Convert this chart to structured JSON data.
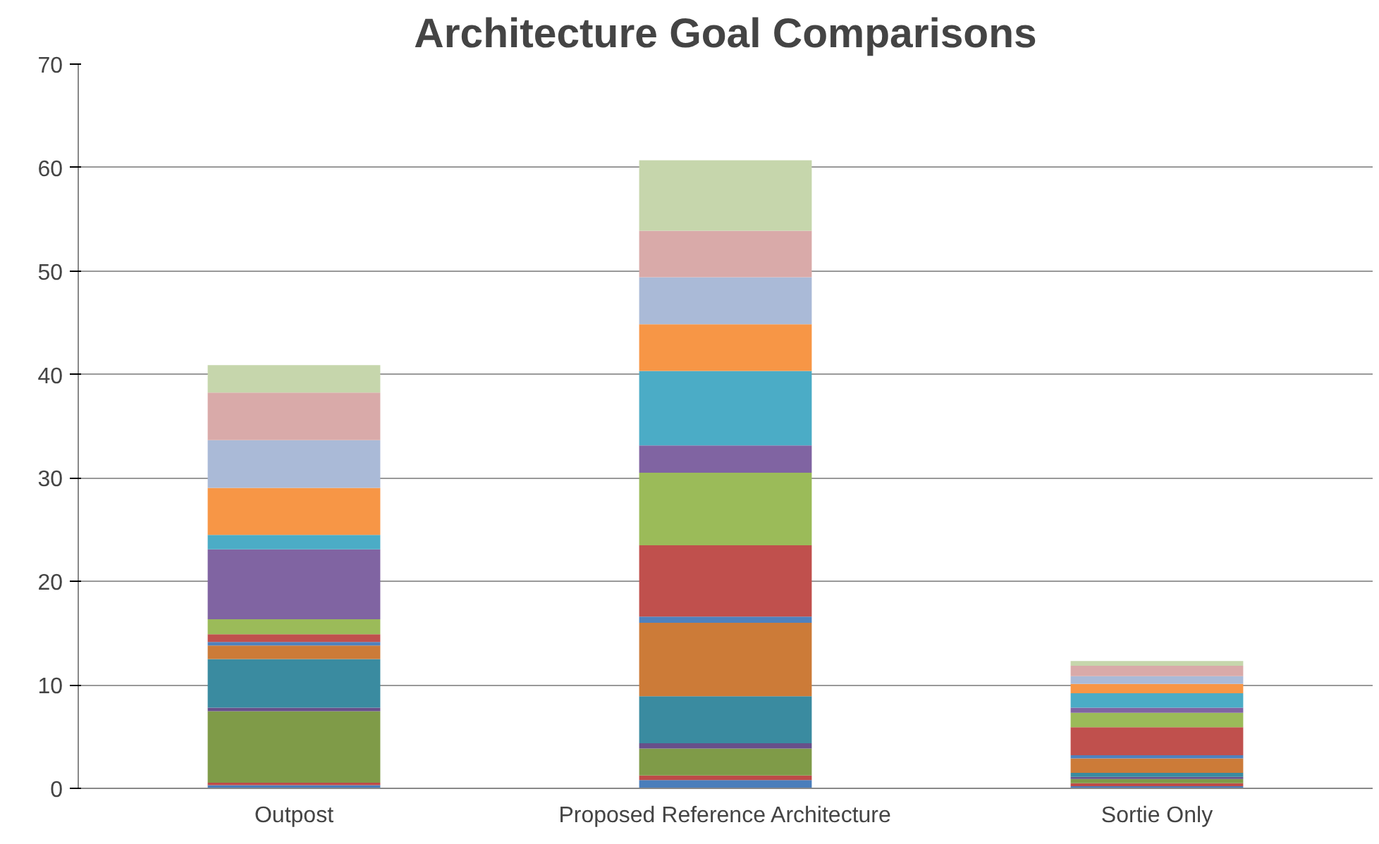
{
  "chart_data": {
    "type": "bar",
    "title": "Architecture Goal Comparisons",
    "stacked": true,
    "grid": "y",
    "categories": [
      "Outpost",
      "Proposed Reference Architecture",
      "Sortie Only"
    ],
    "ylim": [
      0,
      70
    ],
    "yticks": [
      0,
      10,
      20,
      30,
      40,
      50,
      60,
      70
    ],
    "series": [
      {
        "color": "#4a7ebb",
        "values": [
          0.3,
          0.8,
          0.2
        ]
      },
      {
        "color": "#be4b48",
        "values": [
          0.25,
          0.45,
          0.3
        ]
      },
      {
        "color": "#7f9b48",
        "values": [
          6.9,
          2.6,
          0.4
        ]
      },
      {
        "color": "#67508a",
        "values": [
          0.35,
          0.5,
          0.2
        ]
      },
      {
        "color": "#3a8ba0",
        "values": [
          4.7,
          4.55,
          0.4
        ]
      },
      {
        "color": "#cc7b38",
        "values": [
          1.3,
          7.1,
          1.4
        ]
      },
      {
        "color": "#4f81bd",
        "values": [
          0.35,
          0.6,
          0.3
        ]
      },
      {
        "color": "#c0504d",
        "values": [
          0.75,
          6.9,
          2.7
        ]
      },
      {
        "color": "#9bbb59",
        "values": [
          1.45,
          7.0,
          1.4
        ]
      },
      {
        "color": "#8064a2",
        "values": [
          6.75,
          2.65,
          0.5
        ]
      },
      {
        "color": "#4bacc6",
        "values": [
          1.4,
          7.2,
          1.4
        ]
      },
      {
        "color": "#f79646",
        "values": [
          4.55,
          4.5,
          0.9
        ]
      },
      {
        "color": "#aabad7",
        "values": [
          4.6,
          4.55,
          0.75
        ]
      },
      {
        "color": "#d9aaa9",
        "values": [
          4.6,
          4.5,
          1.0
        ]
      },
      {
        "color": "#c6d6ac",
        "values": [
          2.65,
          6.8,
          0.45
        ]
      }
    ]
  }
}
